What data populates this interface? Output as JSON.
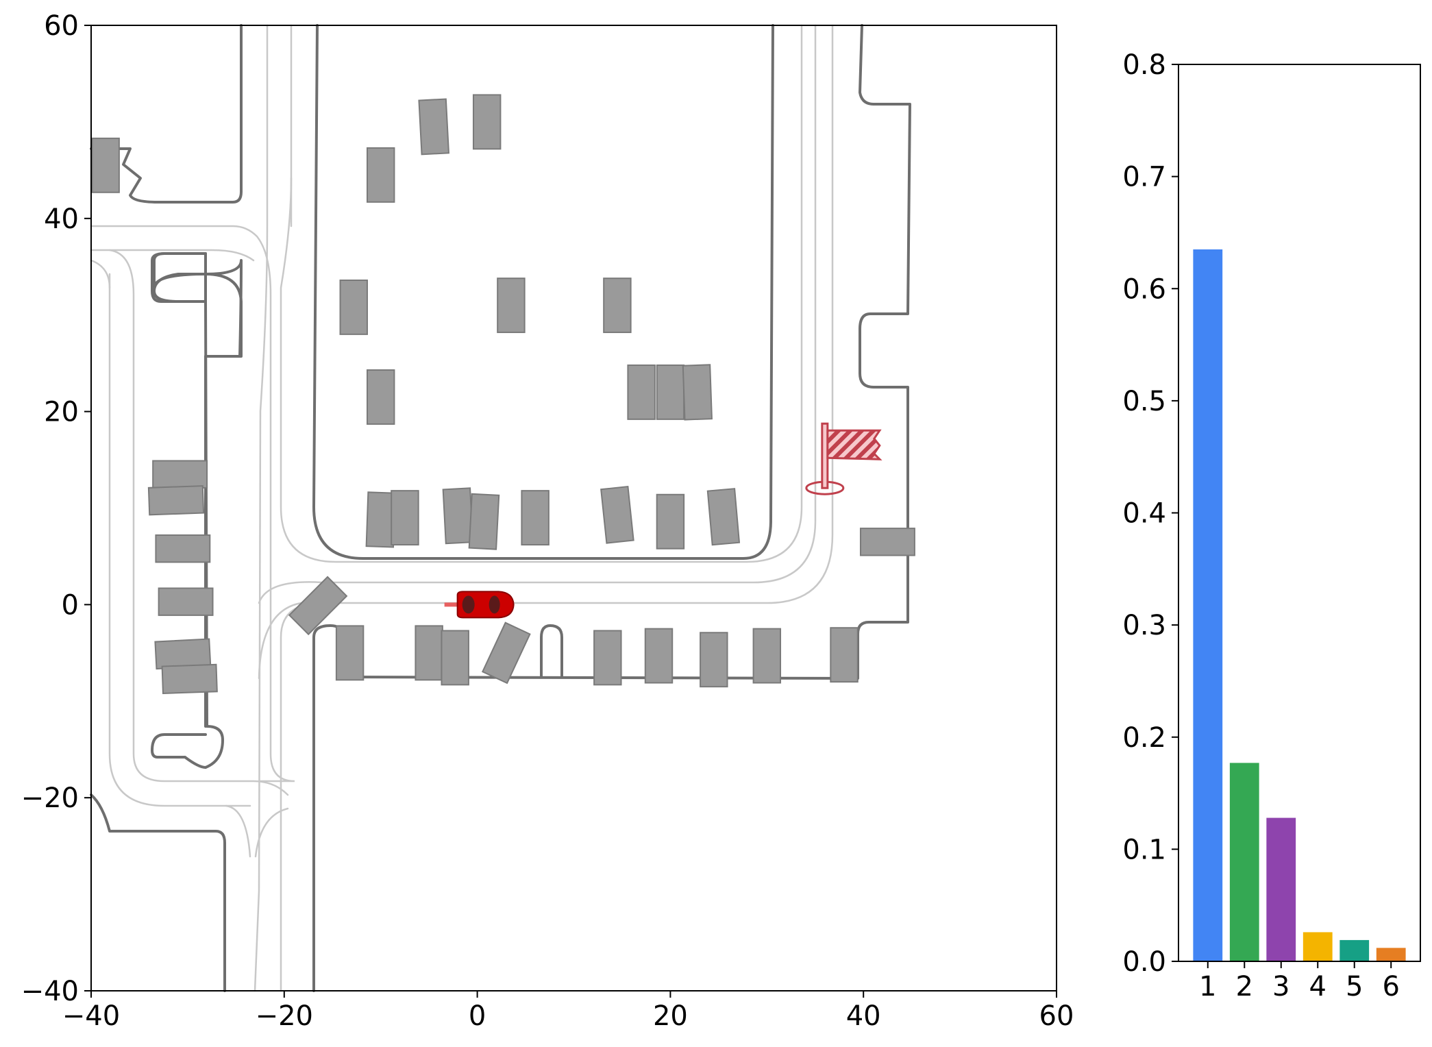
{
  "chart_data": [
    {
      "type": "scatter",
      "title": "",
      "xlabel": "",
      "ylabel": "",
      "xlim": [
        -40,
        60
      ],
      "ylim": [
        -40,
        60
      ],
      "x_ticks": [
        "−40",
        "−20",
        "0",
        "20",
        "40",
        "60"
      ],
      "y_ticks": [
        "−40",
        "−20",
        "0",
        "20",
        "40",
        "60"
      ],
      "ego_vehicle": {
        "x": 0.5,
        "y": 0,
        "heading_deg": 0,
        "color": "#cc0000",
        "icon": "red-car-icon"
      },
      "goal": {
        "x": 36,
        "y": 13,
        "icon": "goal-flag-icon",
        "color": "#c0404c"
      },
      "parked_vehicles": [
        {
          "x": -10,
          "y": 44.5,
          "angle": 0,
          "w": 2,
          "l": 4
        },
        {
          "x": -4.5,
          "y": 49.5,
          "angle": -3,
          "w": 2,
          "l": 4
        },
        {
          "x": 1,
          "y": 50,
          "angle": 0,
          "w": 2,
          "l": 4
        },
        {
          "x": -38.5,
          "y": 45.5,
          "angle": 0,
          "w": 2,
          "l": 4
        },
        {
          "x": -12.8,
          "y": 30.8,
          "angle": 0,
          "w": 2,
          "l": 4
        },
        {
          "x": 3.5,
          "y": 31,
          "angle": 0,
          "w": 2,
          "l": 4
        },
        {
          "x": 14.5,
          "y": 31,
          "angle": 0,
          "w": 2,
          "l": 4
        },
        {
          "x": -10,
          "y": 21.5,
          "angle": 0,
          "w": 2,
          "l": 4
        },
        {
          "x": 17,
          "y": 22,
          "angle": 0,
          "w": 2,
          "l": 4
        },
        {
          "x": 20,
          "y": 22,
          "angle": 0,
          "w": 2,
          "l": 4
        },
        {
          "x": 22.8,
          "y": 22,
          "angle": -2,
          "w": 2,
          "l": 4
        },
        {
          "x": -10,
          "y": 8.8,
          "angle": 2,
          "w": 2,
          "l": 4
        },
        {
          "x": -7.5,
          "y": 9,
          "angle": 0,
          "w": 2,
          "l": 4
        },
        {
          "x": -2,
          "y": 9.2,
          "angle": -3,
          "w": 2,
          "l": 4
        },
        {
          "x": 0.7,
          "y": 8.6,
          "angle": 3,
          "w": 2,
          "l": 4
        },
        {
          "x": 6,
          "y": 9,
          "angle": 0,
          "w": 2,
          "l": 4
        },
        {
          "x": 14.5,
          "y": 9.3,
          "angle": -6,
          "w": 2,
          "l": 4
        },
        {
          "x": 20,
          "y": 8.6,
          "angle": 0,
          "w": 2,
          "l": 4
        },
        {
          "x": 25.5,
          "y": 9.1,
          "angle": -5,
          "w": 2,
          "l": 4
        },
        {
          "x": 42.5,
          "y": 6.5,
          "angle": 90,
          "w": 2,
          "l": 4
        },
        {
          "x": -30.8,
          "y": 13.5,
          "angle": 90,
          "w": 2,
          "l": 4
        },
        {
          "x": -31.2,
          "y": 10.8,
          "angle": 88,
          "w": 2,
          "l": 4
        },
        {
          "x": -30.5,
          "y": 5.8,
          "angle": 90,
          "w": 2,
          "l": 4
        },
        {
          "x": -30.2,
          "y": 0.3,
          "angle": 90,
          "w": 2,
          "l": 4
        },
        {
          "x": -30.5,
          "y": -5.1,
          "angle": 87,
          "w": 2,
          "l": 4
        },
        {
          "x": -29.8,
          "y": -7.7,
          "angle": 88,
          "w": 2,
          "l": 4
        },
        {
          "x": -16.5,
          "y": -0.1,
          "angle": 45,
          "w": 2,
          "l": 4
        },
        {
          "x": -13.2,
          "y": -5,
          "angle": 0,
          "w": 2,
          "l": 4
        },
        {
          "x": -5,
          "y": -5,
          "angle": 0,
          "w": 2,
          "l": 4
        },
        {
          "x": -2.3,
          "y": -5.5,
          "angle": 0,
          "w": 2,
          "l": 4
        },
        {
          "x": 3,
          "y": -5,
          "angle": 25,
          "w": 2,
          "l": 4
        },
        {
          "x": 13.5,
          "y": -5.5,
          "angle": 0,
          "w": 2,
          "l": 4
        },
        {
          "x": 18.8,
          "y": -5.3,
          "angle": 0,
          "w": 2,
          "l": 4
        },
        {
          "x": 24.5,
          "y": -5.7,
          "angle": 0,
          "w": 2,
          "l": 4
        },
        {
          "x": 30,
          "y": -5.3,
          "angle": 0,
          "w": 2,
          "l": 4
        },
        {
          "x": 38,
          "y": -5.2,
          "angle": 0,
          "w": 2,
          "l": 4
        }
      ],
      "colors": {
        "parked": "#9a9a9a",
        "road_boundary": "#6e6e6e",
        "lane_line": "#c8c8c8"
      }
    },
    {
      "type": "bar",
      "title": "",
      "xlabel": "",
      "ylabel": "",
      "categories": [
        "1",
        "2",
        "3",
        "4",
        "5",
        "6"
      ],
      "values": [
        0.635,
        0.177,
        0.128,
        0.026,
        0.019,
        0.012
      ],
      "colors": [
        "#4285f4",
        "#34a853",
        "#8e44ad",
        "#f4b400",
        "#16a085",
        "#e67e22"
      ],
      "ylim": [
        0,
        0.8
      ],
      "y_ticks": [
        "0.0",
        "0.1",
        "0.2",
        "0.3",
        "0.4",
        "0.5",
        "0.6",
        "0.7",
        "0.8"
      ]
    }
  ]
}
